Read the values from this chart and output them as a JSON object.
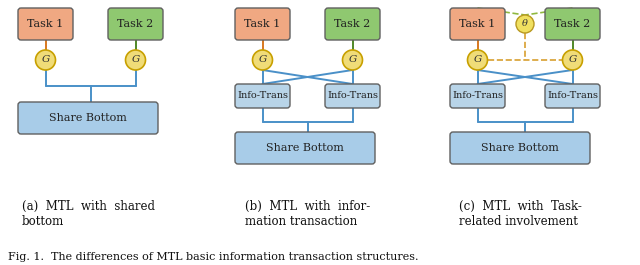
{
  "bg_color": "#ffffff",
  "task1_color": "#f0a882",
  "task2_color": "#8fc870",
  "share_bottom_color": "#a8cce8",
  "info_trans_color": "#b8d4e8",
  "gate_fill": "#f0dc78",
  "gate_stroke": "#c8a000",
  "line_blue": "#4a90c8",
  "orange_line": "#d87820",
  "green_line": "#508828",
  "dashed_color": "#d8a030",
  "dashed_green": "#90b840",
  "caption_a": "(a)  MTL  with  shared\nbottom",
  "caption_b": "(b)  MTL  with  infor-\nmation transaction",
  "caption_c": "(c)  MTL  with  Task-\nrelated involvement",
  "fig_caption": "Fig. 1.  The differences of MTL basic information transaction structures.",
  "font_size": 8.5
}
